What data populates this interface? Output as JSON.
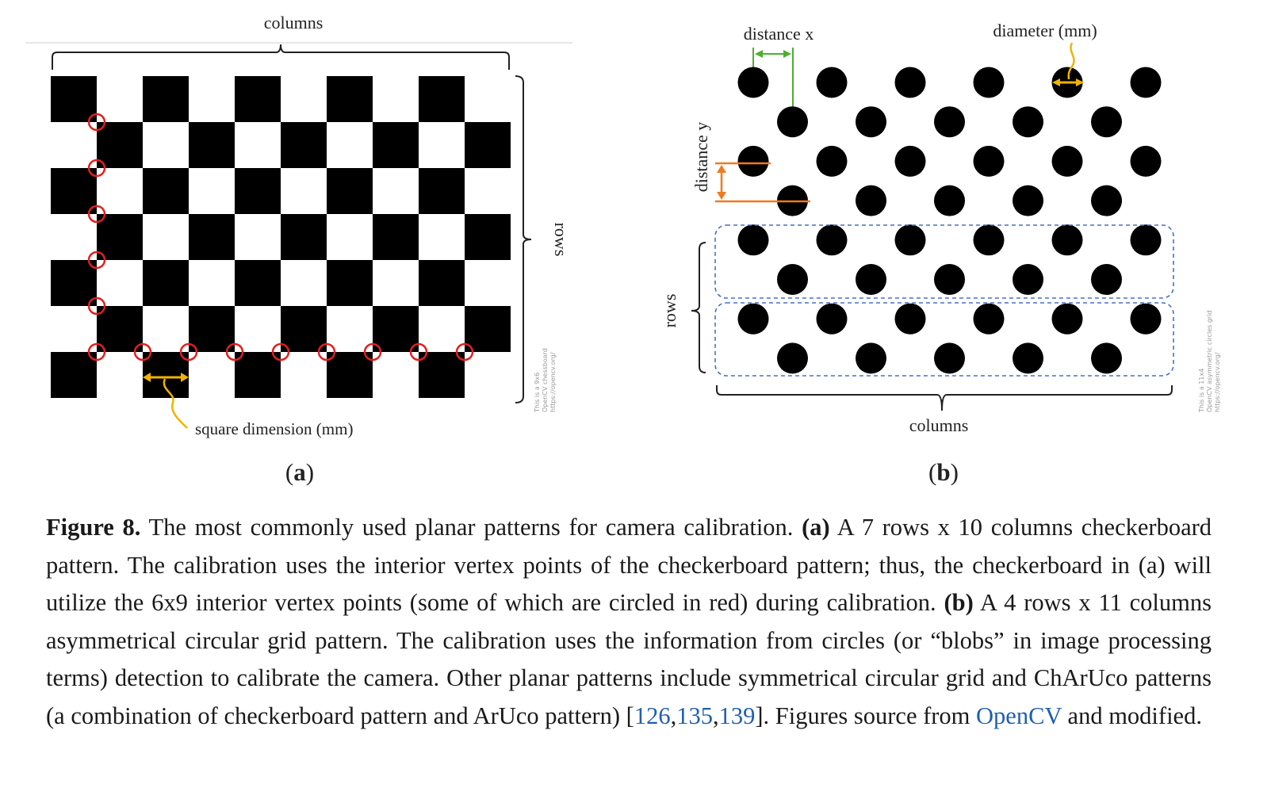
{
  "figure": {
    "panel_a": {
      "columns_label": "columns",
      "rows_label": "rows",
      "square_dimension_label": "square dimension (mm)",
      "panel_label_open": "(",
      "panel_label_letter": "a",
      "panel_label_close": ")",
      "watermark_lines": [
        "This is a 9x6",
        "OpenCV chessboard",
        "https://opencv.org/"
      ],
      "checkerboard": {
        "rows": 7,
        "columns": 10
      },
      "red_circled_vertices": [
        [
          0,
          0
        ],
        [
          0,
          1
        ],
        [
          0,
          2
        ],
        [
          0,
          3
        ],
        [
          0,
          4
        ],
        [
          0,
          5
        ],
        [
          1,
          5
        ],
        [
          2,
          5
        ],
        [
          3,
          5
        ],
        [
          4,
          5
        ],
        [
          5,
          5
        ],
        [
          6,
          5
        ],
        [
          7,
          5
        ],
        [
          8,
          5
        ]
      ],
      "colors": {
        "square": "#000000",
        "vertex_circle": "#e02020",
        "arrow": "#f0b400"
      }
    },
    "panel_b": {
      "distance_x_label": "distance x",
      "diameter_label": "diameter (mm)",
      "distance_y_label": "distance y",
      "rows_label": "rows",
      "columns_label": "columns",
      "panel_label_open": "(",
      "panel_label_letter": "b",
      "panel_label_close": ")",
      "watermark_lines": [
        "This is a 11x4",
        "OpenCV asymmetric circles grid",
        "https://opencv.org/"
      ],
      "circle_grid": {
        "rows": 4,
        "columns": 11,
        "pattern": "asymmetric"
      },
      "colors": {
        "circle": "#000000",
        "distance_x": "#4caf32",
        "distance_y": "#f07a20",
        "diameter_arrow": "#f0b400",
        "row_box": "#4a6fc7"
      }
    }
  },
  "caption": {
    "figure_label": "Figure 8.",
    "sentence_1": " The most commonly used planar patterns for camera calibration. ",
    "part_a_label": "(a)",
    "sentence_2": " A 7 rows x 10 columns checkerboard pattern. The calibration uses the interior vertex points of the checkerboard pattern; thus, the checkerboard in (a) will utilize the 6x9 interior vertex points (some of which are circled in red) during calibration. ",
    "part_b_label": "(b)",
    "sentence_3": " A 4 rows x 11 columns asymmetrical circular grid pattern. The calibration uses the information from circles (or “blobs” in image processing terms) detection to calibrate the camera. Other planar patterns include symmetrical circular grid and ChArUco patterns (a combination of checkerboard pattern and ArUco pattern) [",
    "ref_1": "126",
    "ref_sep_1": ",",
    "ref_2": "135",
    "ref_sep_2": ",",
    "ref_3": "139",
    "sentence_4": "]. Figures source from ",
    "source_link": "OpenCV",
    "sentence_5": " and modified."
  }
}
